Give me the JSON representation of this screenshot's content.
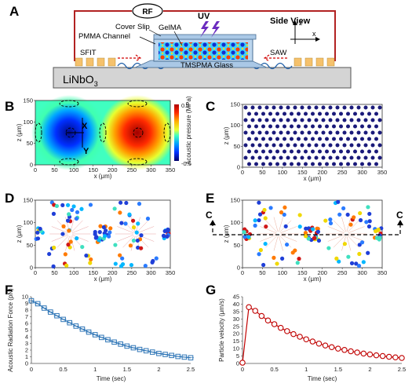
{
  "panel_a": {
    "letter": "A",
    "rf_label": "RF",
    "uv_label": "UV",
    "view_label": "Side View",
    "axis_z": "z",
    "axis_x": "x",
    "labels": {
      "cover_slip": "Cover Slip",
      "gelma": "GelMA",
      "pmma_channel": "PMMA Channel",
      "sfit": "SFIT",
      "saw": "SAW",
      "tmspma_glass": "TMSPMA Glass",
      "substrate": "LiNbO",
      "substrate_sub": "3"
    },
    "colors": {
      "rf_wire": "#b22222",
      "electrode": "#f5c16c",
      "uv": "#6a2bbf",
      "glass": "#aac8e6",
      "substrate": "#d4d4d4"
    }
  },
  "panel_b": {
    "letter": "B",
    "marker_x": "X",
    "marker_y": "Y",
    "colorbar": {
      "label": "Acoustic pressure (MPa)",
      "max": "0.5",
      "min": "-0.5"
    }
  },
  "panel_c": {
    "letter": "C"
  },
  "panel_d": {
    "letter": "D"
  },
  "panel_e": {
    "letter": "E",
    "cut_left": "C",
    "cut_right": "C"
  },
  "panel_f": {
    "letter": "F"
  },
  "panel_g": {
    "letter": "G"
  },
  "chart_data": [
    {
      "panel": "B",
      "type": "heatmap",
      "xlabel": "x (μm)",
      "ylabel": "z (μm)",
      "xlim": [
        0,
        350
      ],
      "ylim": [
        0,
        150
      ],
      "xticks": [
        0,
        50,
        100,
        150,
        200,
        250,
        300,
        350
      ],
      "yticks": [
        0,
        50,
        100,
        150
      ],
      "grid": false
    },
    {
      "panel": "C",
      "type": "scatter",
      "xlabel": "x (μm)",
      "ylabel": "z (μm)",
      "xlim": [
        0,
        350
      ],
      "ylim": [
        0,
        150
      ],
      "xticks": [
        0,
        50,
        100,
        150,
        200,
        250,
        300,
        350
      ],
      "yticks": [
        0,
        50,
        100,
        150
      ],
      "point_color": "#1a1a7a"
    },
    {
      "panel": "D",
      "type": "scatter",
      "xlabel": "x (μm)",
      "ylabel": "z (μm)",
      "xlim": [
        0,
        350
      ],
      "ylim": [
        0,
        150
      ],
      "xticks": [
        0,
        50,
        100,
        150,
        200,
        250,
        300,
        350
      ],
      "yticks": [
        0,
        50,
        100,
        150
      ]
    },
    {
      "panel": "E",
      "type": "scatter",
      "xlabel": "x (μm)",
      "ylabel": "z (μm)",
      "xlim": [
        0,
        350
      ],
      "ylim": [
        0,
        150
      ],
      "xticks": [
        0,
        50,
        100,
        150,
        200,
        250,
        300,
        350
      ],
      "yticks": [
        0,
        50,
        100,
        150
      ]
    },
    {
      "panel": "F",
      "type": "line",
      "xlabel": "Time (sec)",
      "ylabel": "Acoustic Radiation Force (pN)",
      "xlim": [
        0,
        2.5
      ],
      "ylim": [
        0,
        10
      ],
      "xticks": [
        "0",
        "0.5",
        "1",
        "1.5",
        "2",
        "2.5"
      ],
      "yticks": [
        "0",
        "1",
        "2",
        "3",
        "4",
        "5",
        "6",
        "7",
        "8",
        "9",
        "10"
      ],
      "series": [
        {
          "color": "#2e75b6",
          "marker": "square",
          "x": [
            0,
            0.1,
            0.2,
            0.3,
            0.4,
            0.5,
            0.6,
            0.7,
            0.8,
            0.9,
            1.0,
            1.1,
            1.2,
            1.3,
            1.4,
            1.5,
            1.6,
            1.7,
            1.8,
            1.9,
            2.0,
            2.1,
            2.2,
            2.3,
            2.4,
            2.5
          ],
          "values": [
            9.4,
            8.95,
            8.3,
            7.7,
            7.15,
            6.6,
            6.1,
            5.6,
            5.15,
            4.7,
            4.3,
            3.9,
            3.55,
            3.2,
            2.9,
            2.6,
            2.35,
            2.1,
            1.9,
            1.7,
            1.5,
            1.35,
            1.2,
            1.05,
            0.95,
            0.85
          ]
        }
      ]
    },
    {
      "panel": "G",
      "type": "line",
      "xlabel": "Time (sec)",
      "ylabel": "Particle velocity (μm/s)",
      "xlim": [
        0,
        2.5
      ],
      "ylim": [
        0,
        45
      ],
      "xticks": [
        "0",
        "0.5",
        "1",
        "1.5",
        "2",
        "2.5"
      ],
      "yticks": [
        "0",
        "5",
        "10",
        "15",
        "20",
        "25",
        "30",
        "35",
        "40",
        "45"
      ],
      "series": [
        {
          "color": "#c00000",
          "marker": "circle",
          "x": [
            0,
            0.1,
            0.2,
            0.3,
            0.4,
            0.5,
            0.6,
            0.7,
            0.8,
            0.9,
            1.0,
            1.1,
            1.2,
            1.3,
            1.4,
            1.5,
            1.6,
            1.7,
            1.8,
            1.9,
            2.0,
            2.1,
            2.2,
            2.3,
            2.4,
            2.5
          ],
          "values": [
            0.5,
            38,
            35.5,
            32,
            29,
            26.5,
            24,
            21.8,
            19.8,
            18,
            16.3,
            14.8,
            13.4,
            12.1,
            11,
            10,
            9.1,
            8.2,
            7.4,
            6.7,
            6.1,
            5.5,
            5,
            4.5,
            4.1,
            3.7
          ]
        }
      ]
    }
  ]
}
